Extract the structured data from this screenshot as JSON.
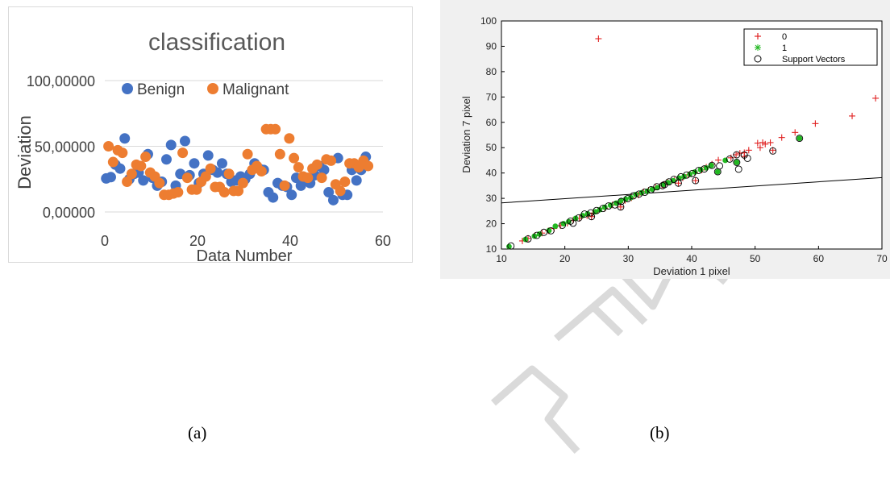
{
  "panels": {
    "a_label": "(a)",
    "b_label": "(b)"
  },
  "colors": {
    "benign": "#4472C4",
    "malignant": "#ED7D31",
    "class0": "#E02020",
    "class1": "#22B822",
    "sv": "#000000",
    "watermark": "#d9d9d9"
  },
  "chart_data": [
    {
      "type": "scatter",
      "title": "classification",
      "xlabel": "Data Number",
      "ylabel": "Deviation",
      "xlim": [
        0,
        60
      ],
      "ylim": [
        0,
        100
      ],
      "x_ticks": [
        "0",
        "20",
        "40",
        "60"
      ],
      "y_ticks": [
        "0,00000",
        "50,00000",
        "100,00000"
      ],
      "legend_position": "top",
      "grid": true,
      "series": [
        {
          "name": "Benign",
          "points": [
            [
              0.3,
              25.5
            ],
            [
              1.3,
              26.5
            ],
            [
              2.3,
              36
            ],
            [
              3.3,
              33
            ],
            [
              4.3,
              56
            ],
            [
              5.3,
              25
            ],
            [
              6.3,
              29
            ],
            [
              7.3,
              30
            ],
            [
              8.3,
              24
            ],
            [
              9.3,
              44
            ],
            [
              10.3,
              26
            ],
            [
              11.3,
              20
            ],
            [
              12.3,
              23
            ],
            [
              13.3,
              40
            ],
            [
              14.3,
              51
            ],
            [
              15.3,
              20
            ],
            [
              16.3,
              29
            ],
            [
              17.3,
              54
            ],
            [
              18.3,
              28
            ],
            [
              19.3,
              37
            ],
            [
              20.3,
              22
            ],
            [
              21.3,
              29
            ],
            [
              22.3,
              43
            ],
            [
              23.3,
              32
            ],
            [
              24.3,
              30
            ],
            [
              25.3,
              37
            ],
            [
              26.3,
              29
            ],
            [
              27.3,
              23
            ],
            [
              28.3,
              24
            ],
            [
              29.3,
              27
            ],
            [
              30.3,
              25
            ],
            [
              31.3,
              29
            ],
            [
              32.3,
              37
            ],
            [
              33.3,
              33
            ],
            [
              34.3,
              32
            ],
            [
              35.3,
              15
            ],
            [
              36.3,
              11
            ],
            [
              37.3,
              22
            ],
            [
              38.3,
              20
            ],
            [
              39.3,
              19
            ],
            [
              40.3,
              13
            ],
            [
              41.3,
              26
            ],
            [
              42.3,
              20
            ],
            [
              43.3,
              26
            ],
            [
              44.3,
              22
            ],
            [
              45.3,
              28
            ],
            [
              46.3,
              35
            ],
            [
              47.3,
              32
            ],
            [
              48.3,
              15
            ],
            [
              49.3,
              9
            ],
            [
              50.3,
              41
            ],
            [
              51.3,
              13
            ],
            [
              52.3,
              13
            ],
            [
              53.3,
              32
            ],
            [
              54.3,
              24
            ],
            [
              55.3,
              32
            ],
            [
              56.3,
              42
            ]
          ]
        },
        {
          "name": "Malignant",
          "points": [
            [
              0.8,
              50
            ],
            [
              1.8,
              38
            ],
            [
              2.8,
              47
            ],
            [
              3.8,
              45
            ],
            [
              4.8,
              23
            ],
            [
              5.8,
              29
            ],
            [
              6.8,
              36
            ],
            [
              7.8,
              35
            ],
            [
              8.8,
              42
            ],
            [
              9.8,
              30
            ],
            [
              10.8,
              27
            ],
            [
              11.8,
              22
            ],
            [
              12.8,
              13
            ],
            [
              13.8,
              13
            ],
            [
              14.8,
              14
            ],
            [
              15.8,
              15
            ],
            [
              16.8,
              45
            ],
            [
              17.8,
              26
            ],
            [
              18.8,
              17
            ],
            [
              19.8,
              17
            ],
            [
              20.8,
              23
            ],
            [
              21.8,
              27
            ],
            [
              22.8,
              33
            ],
            [
              23.8,
              19
            ],
            [
              24.8,
              19
            ],
            [
              25.8,
              15
            ],
            [
              26.8,
              29
            ],
            [
              27.8,
              16
            ],
            [
              28.8,
              16
            ],
            [
              29.8,
              22
            ],
            [
              30.8,
              44
            ],
            [
              31.8,
              32
            ],
            [
              32.8,
              35
            ],
            [
              33.8,
              31
            ],
            [
              34.8,
              63
            ],
            [
              35.8,
              63
            ],
            [
              36.8,
              63
            ],
            [
              37.8,
              44
            ],
            [
              38.8,
              20
            ],
            [
              39.8,
              56
            ],
            [
              40.8,
              41
            ],
            [
              41.8,
              34
            ],
            [
              42.8,
              27
            ],
            [
              43.8,
              26
            ],
            [
              44.8,
              33
            ],
            [
              45.8,
              36
            ],
            [
              46.8,
              26
            ],
            [
              47.8,
              40
            ],
            [
              48.8,
              39
            ],
            [
              49.8,
              21
            ],
            [
              50.8,
              16
            ],
            [
              51.8,
              23
            ],
            [
              52.8,
              37
            ],
            [
              53.8,
              37
            ],
            [
              54.8,
              34
            ],
            [
              55.8,
              39
            ],
            [
              56.8,
              35
            ]
          ]
        }
      ]
    },
    {
      "type": "scatter",
      "title": "",
      "xlabel": "Deviation 1 pixel",
      "ylabel": "Deviation 7 pixel",
      "xlim": [
        10,
        70
      ],
      "ylim": [
        10,
        100
      ],
      "x_ticks": [
        "10",
        "20",
        "30",
        "40",
        "50",
        "60",
        "70"
      ],
      "y_ticks": [
        "10",
        "20",
        "30",
        "40",
        "50",
        "60",
        "70",
        "80",
        "90",
        "100"
      ],
      "legend_position": "top-right",
      "grid": false,
      "series": [
        {
          "name": "0",
          "points": [
            [
              25.3,
              93
            ],
            [
              69,
              69.5
            ],
            [
              65.3,
              62.5
            ],
            [
              59.5,
              59.5
            ],
            [
              56.3,
              56
            ],
            [
              54.2,
              54
            ],
            [
              52.4,
              52
            ],
            [
              51.2,
              52
            ],
            [
              50.4,
              51.8
            ],
            [
              51.6,
              51.4
            ],
            [
              50.8,
              50
            ],
            [
              52.8,
              49
            ],
            [
              49,
              49
            ],
            [
              48.3,
              48
            ],
            [
              47.6,
              47.8
            ],
            [
              47,
              47.2
            ],
            [
              48.3,
              46.5
            ],
            [
              46.2,
              46
            ],
            [
              44.2,
              45.1
            ],
            [
              43.2,
              43.5
            ],
            [
              42.3,
              42.3
            ],
            [
              41.6,
              41.2
            ],
            [
              40.5,
              40.2
            ],
            [
              39.4,
              39.3
            ],
            [
              38.6,
              38.1
            ],
            [
              37.3,
              37.2
            ],
            [
              36.2,
              36.3
            ],
            [
              35.3,
              35.2
            ],
            [
              34.3,
              34.4
            ],
            [
              33.2,
              33.2
            ],
            [
              32.4,
              32.6
            ],
            [
              31.6,
              31.3
            ],
            [
              30.5,
              30.2
            ],
            [
              29.5,
              29.2
            ],
            [
              28.7,
              28.3
            ],
            [
              27.5,
              27.4
            ],
            [
              26.3,
              26.1
            ],
            [
              25.2,
              25.2
            ],
            [
              24.4,
              24.2
            ],
            [
              23.5,
              23.2
            ],
            [
              22.3,
              22.1
            ],
            [
              21.3,
              21.4
            ],
            [
              20.4,
              20.2
            ],
            [
              19.3,
              19.2
            ],
            [
              18.3,
              18.1
            ],
            [
              17.4,
              17.2
            ],
            [
              16.4,
              16.3
            ],
            [
              15.3,
              15.3
            ],
            [
              14.2,
              14.2
            ],
            [
              13.3,
              13.2
            ],
            [
              40.6,
              37
            ],
            [
              35.7,
              35.4
            ],
            [
              37.9,
              36
            ],
            [
              28.8,
              26.6
            ],
            [
              24.2,
              22.8
            ]
          ]
        },
        {
          "name": "1",
          "points": [
            [
              11.2,
              11
            ],
            [
              13.8,
              13.8
            ],
            [
              15.2,
              15.1
            ],
            [
              16,
              15.9
            ],
            [
              17.5,
              17.3
            ],
            [
              18.5,
              19
            ],
            [
              19.8,
              20
            ],
            [
              20.6,
              20.8
            ],
            [
              21.7,
              22.1
            ],
            [
              22.8,
              23.2
            ],
            [
              23.6,
              23.9
            ],
            [
              24.8,
              24.7
            ],
            [
              25.5,
              25.5
            ],
            [
              26.3,
              26.5
            ],
            [
              27.2,
              27.3
            ],
            [
              28.1,
              28.1
            ],
            [
              28.8,
              29
            ],
            [
              29.6,
              29.7
            ],
            [
              30.4,
              30.3
            ],
            [
              31.2,
              31.5
            ],
            [
              32.1,
              32.2
            ],
            [
              33,
              32.8
            ],
            [
              33.8,
              33.6
            ],
            [
              34.6,
              34.2
            ],
            [
              35.5,
              35.4
            ],
            [
              36.3,
              36.2
            ],
            [
              37.1,
              37
            ],
            [
              38,
              38
            ],
            [
              38.8,
              38.6
            ],
            [
              39.7,
              39.5
            ],
            [
              40.5,
              40.4
            ],
            [
              41.4,
              41.3
            ],
            [
              42.3,
              42
            ],
            [
              43.1,
              43
            ],
            [
              44.1,
              40.5
            ],
            [
              47.1,
              44.2
            ],
            [
              57,
              53.7
            ],
            [
              45.3,
              45
            ]
          ]
        },
        {
          "name": "Support Vectors",
          "points": [
            [
              11.5,
              11.2
            ],
            [
              14.2,
              14
            ],
            [
              15.6,
              15.4
            ],
            [
              16.7,
              16.6
            ],
            [
              17.8,
              17.2
            ],
            [
              19.6,
              19.4
            ],
            [
              20.9,
              21
            ],
            [
              22.2,
              22.3
            ],
            [
              23.1,
              23.8
            ],
            [
              24.1,
              24.3
            ],
            [
              25,
              25.2
            ],
            [
              26,
              26
            ],
            [
              26.9,
              27
            ],
            [
              27.9,
              27.4
            ],
            [
              28.9,
              28.8
            ],
            [
              29.9,
              29.9
            ],
            [
              30.8,
              31
            ],
            [
              31.7,
              31.7
            ],
            [
              32.6,
              32.4
            ],
            [
              33.6,
              33.4
            ],
            [
              34.5,
              34.6
            ],
            [
              35.4,
              35
            ],
            [
              36.4,
              36.5
            ],
            [
              37.2,
              37.5
            ],
            [
              38.3,
              38.5
            ],
            [
              39.2,
              39.2
            ],
            [
              40.1,
              39.8
            ],
            [
              41.1,
              41
            ],
            [
              42,
              41.6
            ],
            [
              43.2,
              43
            ],
            [
              44.4,
              42.8
            ],
            [
              46,
              45.5
            ],
            [
              47.1,
              47.2
            ],
            [
              48.3,
              47.1
            ],
            [
              48.8,
              45.8
            ],
            [
              47.4,
              41.5
            ],
            [
              52.8,
              48.7
            ],
            [
              57,
              53.7
            ],
            [
              40.6,
              37
            ],
            [
              37.9,
              36
            ],
            [
              28.8,
              26.6
            ],
            [
              24.2,
              22.8
            ],
            [
              21.3,
              20.2
            ],
            [
              35.7,
              35.4
            ],
            [
              44.1,
              40.5
            ],
            [
              47.1,
              44.2
            ]
          ]
        }
      ],
      "line": {
        "x": [
          10,
          70
        ],
        "y": [
          28.2,
          38.2
        ]
      }
    }
  ]
}
